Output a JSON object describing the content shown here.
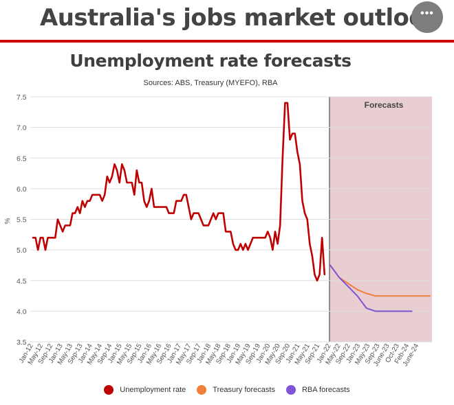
{
  "header": {
    "title": "Australia's jobs market outlook",
    "menu_icon": "more-horizontal-icon",
    "menu_glyph": "•••",
    "rule_color": "#cc0000"
  },
  "colors": {
    "unemployment": "#c00000",
    "treasury": "#f07f3c",
    "rba": "#7d55d6",
    "forecast_bg": "#e8cdd1"
  },
  "chart_data": {
    "type": "line",
    "title": "Unemployment rate forecasts",
    "subtitle": "Sources: ABS, Treasury (MYEFO), RBA",
    "xlabel": "",
    "ylabel": "%",
    "ylim": [
      3.5,
      7.5
    ],
    "yticks": [
      "7.5",
      "7.0",
      "6.5",
      "6.0",
      "5.5",
      "5.0",
      "4.5",
      "4.0",
      "3.5"
    ],
    "x_tick_labels": [
      "Jan-12",
      "May-12",
      "Sep-12",
      "Jan-13",
      "May-13",
      "Sep-13",
      "Jan-14",
      "May-14",
      "Sep-14",
      "Jan-15",
      "May-15",
      "Sep-15",
      "Jan-16",
      "May-16",
      "Sep-16",
      "Jan-17",
      "May-17",
      "Sep-17",
      "Jan-18",
      "May-18",
      "Sep-18",
      "Jan-19",
      "May-19",
      "Sep-19",
      "Jan-20",
      "May-20",
      "Sep-20",
      "Jan-21",
      "May-21",
      "Sep-21",
      "Jan-22",
      "May-22",
      "Sep-22",
      "Jan-23",
      "May-23",
      "Sep-23",
      "June-23",
      "Oct-23",
      "Feb-24",
      "June-24"
    ],
    "grid": true,
    "legend_position": "bottom",
    "annotation": "Forecasts",
    "forecast_start": "Jan-22",
    "series": [
      {
        "name": "Unemployment rate",
        "points": [
          [
            "Jan-12",
            5.2
          ],
          [
            "Feb-12",
            5.2
          ],
          [
            "Mar-12",
            5.0
          ],
          [
            "Apr-12",
            5.2
          ],
          [
            "May-12",
            5.2
          ],
          [
            "Jun-12",
            5.0
          ],
          [
            "Jul-12",
            5.2
          ],
          [
            "Aug-12",
            5.2
          ],
          [
            "Sep-12",
            5.2
          ],
          [
            "Oct-12",
            5.2
          ],
          [
            "Nov-12",
            5.5
          ],
          [
            "Dec-12",
            5.4
          ],
          [
            "Jan-13",
            5.3
          ],
          [
            "Feb-13",
            5.4
          ],
          [
            "Mar-13",
            5.4
          ],
          [
            "Apr-13",
            5.4
          ],
          [
            "May-13",
            5.6
          ],
          [
            "Jun-13",
            5.6
          ],
          [
            "Jul-13",
            5.7
          ],
          [
            "Aug-13",
            5.6
          ],
          [
            "Sep-13",
            5.8
          ],
          [
            "Oct-13",
            5.7
          ],
          [
            "Nov-13",
            5.8
          ],
          [
            "Dec-13",
            5.8
          ],
          [
            "Jan-14",
            5.9
          ],
          [
            "Feb-14",
            5.9
          ],
          [
            "Mar-14",
            5.9
          ],
          [
            "Apr-14",
            5.9
          ],
          [
            "May-14",
            5.8
          ],
          [
            "Jun-14",
            5.9
          ],
          [
            "Jul-14",
            6.2
          ],
          [
            "Aug-14",
            6.1
          ],
          [
            "Sep-14",
            6.2
          ],
          [
            "Oct-14",
            6.4
          ],
          [
            "Nov-14",
            6.3
          ],
          [
            "Dec-14",
            6.1
          ],
          [
            "Jan-15",
            6.4
          ],
          [
            "Feb-15",
            6.3
          ],
          [
            "Mar-15",
            6.1
          ],
          [
            "Apr-15",
            6.1
          ],
          [
            "May-15",
            6.1
          ],
          [
            "Jun-15",
            5.9
          ],
          [
            "Jul-15",
            6.3
          ],
          [
            "Aug-15",
            6.1
          ],
          [
            "Sep-15",
            6.1
          ],
          [
            "Oct-15",
            5.8
          ],
          [
            "Nov-15",
            5.7
          ],
          [
            "Dec-15",
            5.8
          ],
          [
            "Jan-16",
            6.0
          ],
          [
            "Feb-16",
            5.7
          ],
          [
            "Mar-16",
            5.7
          ],
          [
            "Apr-16",
            5.7
          ],
          [
            "May-16",
            5.7
          ],
          [
            "Jun-16",
            5.7
          ],
          [
            "Jul-16",
            5.7
          ],
          [
            "Aug-16",
            5.6
          ],
          [
            "Sep-16",
            5.6
          ],
          [
            "Oct-16",
            5.6
          ],
          [
            "Nov-16",
            5.8
          ],
          [
            "Dec-16",
            5.8
          ],
          [
            "Jan-17",
            5.8
          ],
          [
            "Feb-17",
            5.9
          ],
          [
            "Mar-17",
            5.9
          ],
          [
            "Apr-17",
            5.7
          ],
          [
            "May-17",
            5.5
          ],
          [
            "Jun-17",
            5.6
          ],
          [
            "Jul-17",
            5.6
          ],
          [
            "Aug-17",
            5.6
          ],
          [
            "Sep-17",
            5.5
          ],
          [
            "Oct-17",
            5.4
          ],
          [
            "Nov-17",
            5.4
          ],
          [
            "Dec-17",
            5.4
          ],
          [
            "Jan-18",
            5.5
          ],
          [
            "Feb-18",
            5.6
          ],
          [
            "Mar-18",
            5.5
          ],
          [
            "Apr-18",
            5.6
          ],
          [
            "May-18",
            5.6
          ],
          [
            "Jun-18",
            5.6
          ],
          [
            "Jul-18",
            5.3
          ],
          [
            "Aug-18",
            5.3
          ],
          [
            "Sep-18",
            5.3
          ],
          [
            "Oct-18",
            5.1
          ],
          [
            "Nov-18",
            5.0
          ],
          [
            "Dec-18",
            5.0
          ],
          [
            "Jan-19",
            5.1
          ],
          [
            "Feb-19",
            5.0
          ],
          [
            "Mar-19",
            5.1
          ],
          [
            "Apr-19",
            5.0
          ],
          [
            "May-19",
            5.1
          ],
          [
            "Jun-19",
            5.2
          ],
          [
            "Jul-19",
            5.2
          ],
          [
            "Aug-19",
            5.2
          ],
          [
            "Sep-19",
            5.2
          ],
          [
            "Oct-19",
            5.2
          ],
          [
            "Nov-19",
            5.2
          ],
          [
            "Dec-19",
            5.3
          ],
          [
            "Jan-20",
            5.2
          ],
          [
            "Feb-20",
            5.0
          ],
          [
            "Mar-20",
            5.3
          ],
          [
            "Apr-20",
            5.1
          ],
          [
            "May-20",
            5.4
          ],
          [
            "Jun-20",
            6.5
          ],
          [
            "Jul-20",
            7.4
          ],
          [
            "Aug-20",
            7.4
          ],
          [
            "Sep-20",
            6.8
          ],
          [
            "Oct-20",
            6.9
          ],
          [
            "Nov-20",
            6.9
          ],
          [
            "Dec-20",
            6.6
          ],
          [
            "Jan-21",
            6.4
          ],
          [
            "Feb-21",
            5.8
          ],
          [
            "Mar-21",
            5.6
          ],
          [
            "Apr-21",
            5.5
          ],
          [
            "May-21",
            5.1
          ],
          [
            "Jun-21",
            4.9
          ],
          [
            "Jul-21",
            4.6
          ],
          [
            "Aug-21",
            4.5
          ],
          [
            "Sep-21",
            4.6
          ],
          [
            "Oct-21",
            5.2
          ],
          [
            "Nov-21",
            4.6
          ]
        ]
      },
      {
        "name": "Treasury forecasts",
        "points": [
          [
            "Dec-21",
            4.75
          ],
          [
            "Apr-22",
            4.55
          ],
          [
            "Aug-22",
            4.45
          ],
          [
            "Dec-22",
            4.35
          ],
          [
            "Apr-23",
            4.29
          ],
          [
            "Aug-23",
            4.25
          ],
          [
            "Dec-23",
            4.25
          ],
          [
            "Apr-24",
            4.25
          ],
          [
            "Aug-24",
            4.25
          ],
          [
            "Dec-24",
            4.25
          ],
          [
            "Apr-25",
            4.25
          ],
          [
            "Aug-25",
            4.25
          ]
        ]
      },
      {
        "name": "RBA forecasts",
        "points": [
          [
            "Dec-21",
            4.75
          ],
          [
            "Apr-22",
            4.55
          ],
          [
            "Aug-22",
            4.4
          ],
          [
            "Dec-22",
            4.25
          ],
          [
            "Apr-23",
            4.05
          ],
          [
            "Aug-23",
            4.0
          ],
          [
            "Dec-23",
            4.0
          ],
          [
            "Apr-24",
            4.0
          ],
          [
            "Aug-24",
            4.0
          ],
          [
            "Dec-24",
            4.0
          ]
        ]
      }
    ]
  }
}
